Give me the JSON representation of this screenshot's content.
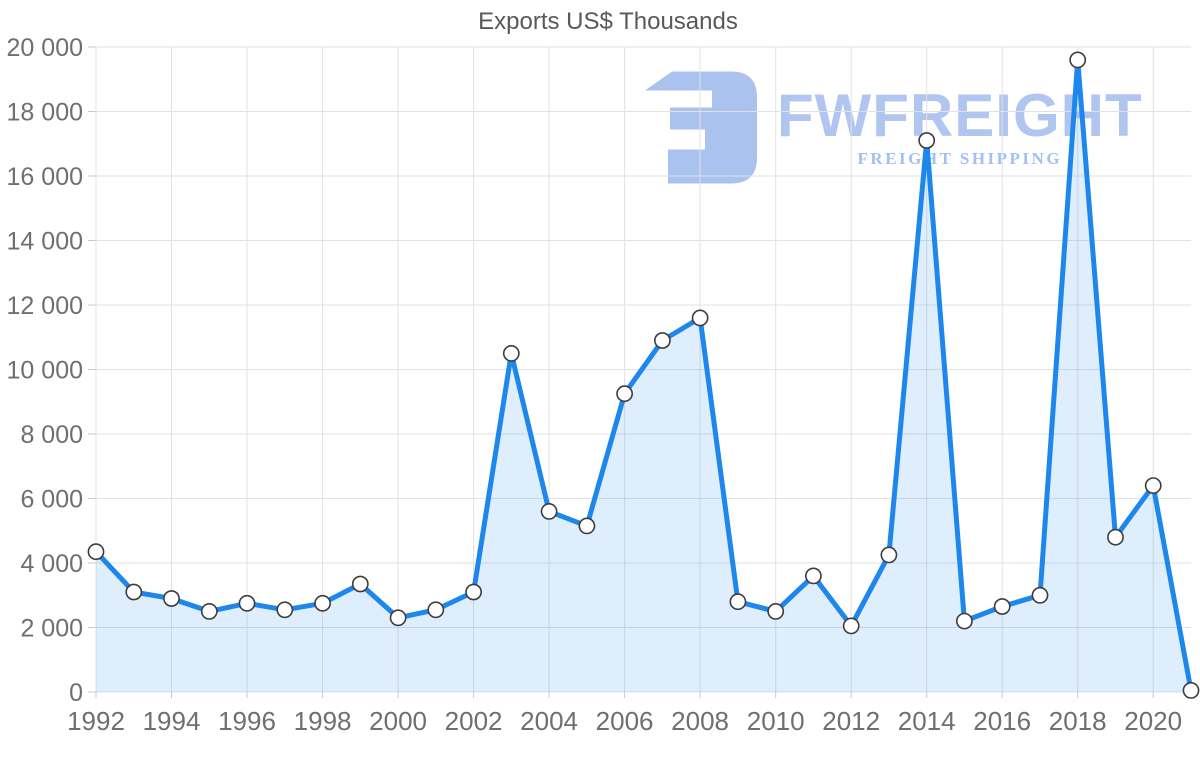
{
  "chart_data": {
    "type": "area",
    "title": "Exports US$ Thousands",
    "xlabel": "",
    "ylabel": "",
    "x": [
      1992,
      1993,
      1994,
      1995,
      1996,
      1997,
      1998,
      1999,
      2000,
      2001,
      2002,
      2003,
      2004,
      2005,
      2006,
      2007,
      2008,
      2009,
      2010,
      2011,
      2012,
      2013,
      2014,
      2015,
      2016,
      2017,
      2018,
      2019,
      2020,
      2021
    ],
    "series": [
      {
        "name": "Exports US$ Thousands",
        "values": [
          4350,
          3100,
          2900,
          2500,
          2750,
          2550,
          2750,
          3350,
          2300,
          2550,
          3100,
          10500,
          5600,
          5150,
          9250,
          10900,
          11600,
          2800,
          2500,
          3600,
          2050,
          4250,
          17100,
          2200,
          2650,
          3000,
          19600,
          4800,
          6400,
          50
        ]
      }
    ],
    "ylim": [
      0,
      20000
    ],
    "y_tick_step": 2000,
    "y_tick_labels": [
      "0",
      "2 000",
      "4 000",
      "6 000",
      "8 000",
      "10 000",
      "12 000",
      "14 000",
      "16 000",
      "18 000",
      "20 000"
    ],
    "x_tick_labels": [
      "1992",
      "1994",
      "1996",
      "1998",
      "2000",
      "2002",
      "2004",
      "2006",
      "2008",
      "2010",
      "2012",
      "2014",
      "2016",
      "2018",
      "2020"
    ],
    "grid": "on",
    "legend": "none"
  },
  "watermark": {
    "brand": "FWFREIGHT",
    "tagline": "FREIGHT SHIPPING"
  },
  "colors": {
    "line": "#1e87ec",
    "area_fill": "#1e87ec",
    "area_opacity": "0.14",
    "marker_fill": "#ffffff",
    "marker_stroke": "#3d3d3d",
    "grid": "#e2e2e2",
    "tick": "#c8c8c8",
    "axis_label": "#6f6f6f",
    "title_color": "#595959",
    "watermark_brand": "#b0c5ef",
    "watermark_tagline": "#a2c0f2"
  }
}
